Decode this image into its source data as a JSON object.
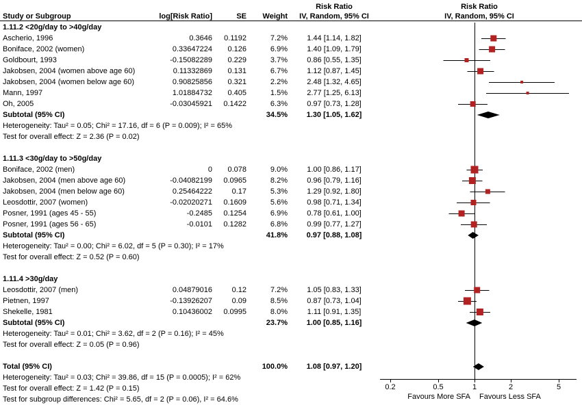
{
  "header": {
    "risk_ratio_text_col": "Risk Ratio",
    "risk_ratio_plot_col": "Risk Ratio",
    "study": "Study or Subgroup",
    "log_rr": "log[Risk Ratio]",
    "se": "SE",
    "weight": "Weight",
    "method_text_col": "IV, Random, 95% CI",
    "method_plot_col": "IV, Random, 95% CI"
  },
  "chart_data": {
    "type": "forest",
    "effect_measure": "Risk Ratio",
    "model": "IV, Random, 95% CI",
    "marker_color": "#b22222",
    "axis": {
      "scale": "log",
      "ticks": [
        0.2,
        0.5,
        1,
        2,
        5
      ],
      "label_left": "Favours More SFA",
      "label_right": "Favours Less SFA"
    },
    "subgroups": [
      {
        "title": "1.11.2 <20g/day to >40g/day",
        "studies": [
          {
            "name": "Ascherio, 1996",
            "log_rr": "0.3646",
            "se": "0.1192",
            "weight": "7.2%",
            "weight_pct": 7.2,
            "ci_text": "1.44 [1.14, 1.82]",
            "rr": 1.44,
            "lo": 1.14,
            "hi": 1.82
          },
          {
            "name": "Boniface, 2002 (women)",
            "log_rr": "0.33647224",
            "se": "0.126",
            "weight": "6.9%",
            "weight_pct": 6.9,
            "ci_text": "1.40 [1.09, 1.79]",
            "rr": 1.4,
            "lo": 1.09,
            "hi": 1.79
          },
          {
            "name": "Goldbourt, 1993",
            "log_rr": "-0.15082289",
            "se": "0.229",
            "weight": "3.7%",
            "weight_pct": 3.7,
            "ci_text": "0.86 [0.55, 1.35]",
            "rr": 0.86,
            "lo": 0.55,
            "hi": 1.35
          },
          {
            "name": "Jakobsen, 2004 (women above age 60)",
            "log_rr": "0.11332869",
            "se": "0.131",
            "weight": "6.7%",
            "weight_pct": 6.7,
            "ci_text": "1.12 [0.87, 1.45]",
            "rr": 1.12,
            "lo": 0.87,
            "hi": 1.45
          },
          {
            "name": "Jakobsen, 2004 (women below age 60)",
            "log_rr": "0.90825856",
            "se": "0.321",
            "weight": "2.2%",
            "weight_pct": 2.2,
            "ci_text": "2.48 [1.32, 4.65]",
            "rr": 2.48,
            "lo": 1.32,
            "hi": 4.65
          },
          {
            "name": "Mann, 1997",
            "log_rr": "1.01884732",
            "se": "0.405",
            "weight": "1.5%",
            "weight_pct": 1.5,
            "ci_text": "2.77 [1.25, 6.13]",
            "rr": 2.77,
            "lo": 1.25,
            "hi": 6.13
          },
          {
            "name": "Oh, 2005",
            "log_rr": "-0.03045921",
            "se": "0.1422",
            "weight": "6.3%",
            "weight_pct": 6.3,
            "ci_text": "0.97 [0.73, 1.28]",
            "rr": 0.97,
            "lo": 0.73,
            "hi": 1.28
          }
        ],
        "subtotal": {
          "label": "Subtotal (95% CI)",
          "weight": "34.5%",
          "ci_text": "1.30 [1.05, 1.62]",
          "rr": 1.3,
          "lo": 1.05,
          "hi": 1.62
        },
        "heterogeneity": "Heterogeneity: Tau² = 0.05; Chi² = 17.16, df = 6 (P = 0.009); I² = 65%",
        "overall_effect": "Test for overall effect: Z = 2.36 (P = 0.02)"
      },
      {
        "title": "1.11.3 <30g/day to >50g/day",
        "studies": [
          {
            "name": "Boniface, 2002 (men)",
            "log_rr": "0",
            "se": "0.078",
            "weight": "9.0%",
            "weight_pct": 9.0,
            "ci_text": "1.00 [0.86, 1.17]",
            "rr": 1.0,
            "lo": 0.86,
            "hi": 1.17
          },
          {
            "name": "Jakobsen, 2004 (men above age 60)",
            "log_rr": "-0.04082199",
            "se": "0.0965",
            "weight": "8.2%",
            "weight_pct": 8.2,
            "ci_text": "0.96 [0.79, 1.16]",
            "rr": 0.96,
            "lo": 0.79,
            "hi": 1.16
          },
          {
            "name": "Jakobsen, 2004 (men below age 60)",
            "log_rr": "0.25464222",
            "se": "0.17",
            "weight": "5.3%",
            "weight_pct": 5.3,
            "ci_text": "1.29 [0.92, 1.80]",
            "rr": 1.29,
            "lo": 0.92,
            "hi": 1.8
          },
          {
            "name": "Leosdottir, 2007 (women)",
            "log_rr": "-0.02020271",
            "se": "0.1609",
            "weight": "5.6%",
            "weight_pct": 5.6,
            "ci_text": "0.98 [0.71, 1.34]",
            "rr": 0.98,
            "lo": 0.71,
            "hi": 1.34
          },
          {
            "name": "Posner, 1991 (ages 45 - 55)",
            "log_rr": "-0.2485",
            "se": "0.1254",
            "weight": "6.9%",
            "weight_pct": 6.9,
            "ci_text": "0.78 [0.61, 1.00]",
            "rr": 0.78,
            "lo": 0.61,
            "hi": 1.0
          },
          {
            "name": "Posner, 1991 (ages 56 - 65)",
            "log_rr": "-0.0101",
            "se": "0.1282",
            "weight": "6.8%",
            "weight_pct": 6.8,
            "ci_text": "0.99 [0.77, 1.27]",
            "rr": 0.99,
            "lo": 0.77,
            "hi": 1.27
          }
        ],
        "subtotal": {
          "label": "Subtotal (95% CI)",
          "weight": "41.8%",
          "ci_text": "0.97 [0.88, 1.08]",
          "rr": 0.97,
          "lo": 0.88,
          "hi": 1.08
        },
        "heterogeneity": "Heterogeneity: Tau² = 0.00; Chi² = 6.02, df = 5 (P = 0.30); I² = 17%",
        "overall_effect": "Test for overall effect: Z = 0.52 (P = 0.60)"
      },
      {
        "title": "1.11.4 >30g/day",
        "studies": [
          {
            "name": "Leosdottir, 2007 (men)",
            "log_rr": "0.04879016",
            "se": "0.12",
            "weight": "7.2%",
            "weight_pct": 7.2,
            "ci_text": "1.05 [0.83, 1.33]",
            "rr": 1.05,
            "lo": 0.83,
            "hi": 1.33
          },
          {
            "name": "Pietnen, 1997",
            "log_rr": "-0.13926207",
            "se": "0.09",
            "weight": "8.5%",
            "weight_pct": 8.5,
            "ci_text": "0.87 [0.73, 1.04]",
            "rr": 0.87,
            "lo": 0.73,
            "hi": 1.04
          },
          {
            "name": "Shekelle, 1981",
            "log_rr": "0.10436002",
            "se": "0.0995",
            "weight": "8.0%",
            "weight_pct": 8.0,
            "ci_text": "1.11 [0.91, 1.35]",
            "rr": 1.11,
            "lo": 0.91,
            "hi": 1.35
          }
        ],
        "subtotal": {
          "label": "Subtotal (95% CI)",
          "weight": "23.7%",
          "ci_text": "1.00 [0.85, 1.16]",
          "rr": 1.0,
          "lo": 0.85,
          "hi": 1.16
        },
        "heterogeneity": "Heterogeneity: Tau² = 0.01; Chi² = 3.62, df = 2 (P = 0.16); I² = 45%",
        "overall_effect": "Test for overall effect: Z = 0.05 (P = 0.96)"
      }
    ],
    "total": {
      "label": "Total (95% CI)",
      "weight": "100.0%",
      "ci_text": "1.08 [0.97, 1.20]",
      "rr": 1.08,
      "lo": 0.97,
      "hi": 1.2,
      "heterogeneity": "Heterogeneity: Tau² = 0.03; Chi² = 39.86, df = 15 (P = 0.0005); I² = 62%",
      "overall_effect": "Test for overall effect: Z = 1.42 (P = 0.15)",
      "subgroup_diff": "Test for subgroup differences: Chi² = 5.65, df = 2 (P = 0.06), I² = 64.6%"
    }
  }
}
